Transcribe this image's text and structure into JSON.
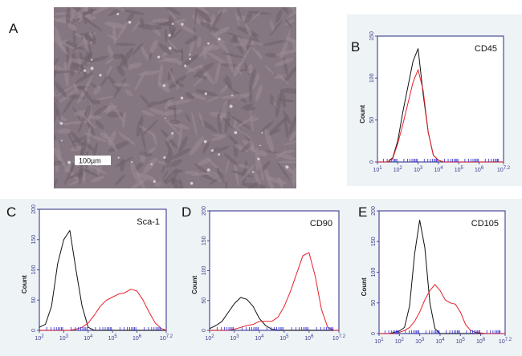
{
  "figure": {
    "panel_a": {
      "letter": "A",
      "scale_bar_label": "100µm"
    }
  },
  "colors": {
    "control_line": "#111111",
    "marker_line": "#e8202a",
    "axis": "#4b4b95",
    "panel_background": "#eef3f6"
  },
  "chart_data": [
    {
      "letter": "B",
      "type": "line",
      "title": "CD45",
      "ylabel": "Count",
      "xscale": "log10",
      "xlim": [
        10.0,
        15850000.0
      ],
      "ylim": [
        0,
        150
      ],
      "yticks": [
        "0",
        "50",
        "100",
        "150"
      ],
      "xticks": [
        "10^1",
        "10^2",
        "10^3",
        "10^4",
        "10^5",
        "10^6",
        "10^7.2"
      ],
      "grid": false,
      "series": [
        {
          "color": "#111111",
          "points": [
            [
              10,
              0
            ],
            [
              31.6,
              0
            ],
            [
              56.2,
              5
            ],
            [
              100,
              25
            ],
            [
              178,
              60
            ],
            [
              316,
              90
            ],
            [
              562,
              120
            ],
            [
              1000,
              135
            ],
            [
              1778,
              80
            ],
            [
              3162,
              35
            ],
            [
              5623,
              8
            ],
            [
              10000,
              2
            ],
            [
              17783,
              0
            ],
            [
              15850000.0,
              0
            ]
          ]
        },
        {
          "color": "#e8202a",
          "points": [
            [
              10,
              0
            ],
            [
              31.6,
              0
            ],
            [
              56.2,
              4
            ],
            [
              100,
              22
            ],
            [
              178,
              45
            ],
            [
              316,
              70
            ],
            [
              562,
              95
            ],
            [
              1000,
              110
            ],
            [
              1778,
              85
            ],
            [
              3162,
              35
            ],
            [
              5623,
              8
            ],
            [
              10000,
              2
            ],
            [
              17783,
              0
            ],
            [
              15850000.0,
              0
            ]
          ]
        }
      ]
    },
    {
      "letter": "C",
      "type": "line",
      "title": "Sca-1",
      "ylabel": "Count",
      "xscale": "log10",
      "xlim": [
        100.0,
        15850000.0
      ],
      "ylim": [
        0,
        200
      ],
      "yticks": [
        "0",
        "50",
        "100",
        "150",
        "200"
      ],
      "xticks": [
        "10^2",
        "10^3",
        "10^4",
        "10^5",
        "10^6",
        "10^7.2"
      ],
      "grid": false,
      "series": [
        {
          "color": "#111111",
          "points": [
            [
              100,
              5
            ],
            [
              178,
              10
            ],
            [
              316,
              40
            ],
            [
              562,
              110
            ],
            [
              1000,
              150
            ],
            [
              1778,
              165
            ],
            [
              3162,
              100
            ],
            [
              5623,
              40
            ],
            [
              10000,
              5
            ],
            [
              17783,
              0
            ],
            [
              15850000.0,
              0
            ]
          ]
        },
        {
          "color": "#e8202a",
          "points": [
            [
              100,
              0
            ],
            [
              1778,
              0
            ],
            [
              3162,
              2
            ],
            [
              5623,
              5
            ],
            [
              10000,
              12
            ],
            [
              17783,
              25
            ],
            [
              31623,
              40
            ],
            [
              56234,
              50
            ],
            [
              100000.0,
              55
            ],
            [
              177828,
              60
            ],
            [
              316228,
              62
            ],
            [
              562341,
              68
            ],
            [
              1000000.0,
              65
            ],
            [
              1778279,
              50
            ],
            [
              3162278,
              30
            ],
            [
              5623413,
              12
            ],
            [
              10000000.0,
              3
            ],
            [
              15850000.0,
              0
            ]
          ]
        }
      ]
    },
    {
      "letter": "D",
      "type": "line",
      "title": "CD90",
      "ylabel": "Count",
      "xscale": "log10",
      "xlim": [
        100.0,
        15850000.0
      ],
      "ylim": [
        0,
        200
      ],
      "yticks": [
        "0",
        "50",
        "100",
        "150",
        "200"
      ],
      "xticks": [
        "10^2",
        "10^3",
        "10^4",
        "10^5",
        "10^6",
        "10^7.2"
      ],
      "grid": false,
      "series": [
        {
          "color": "#111111",
          "points": [
            [
              100,
              3
            ],
            [
              178,
              8
            ],
            [
              316,
              15
            ],
            [
              562,
              30
            ],
            [
              1000,
              45
            ],
            [
              1778,
              55
            ],
            [
              3162,
              52
            ],
            [
              5623,
              40
            ],
            [
              10000,
              20
            ],
            [
              17783,
              8
            ],
            [
              31623,
              2
            ],
            [
              56234,
              0
            ],
            [
              15850000.0,
              0
            ]
          ]
        },
        {
          "color": "#e8202a",
          "points": [
            [
              100,
              0
            ],
            [
              562,
              0
            ],
            [
              1000,
              2
            ],
            [
              1778,
              5
            ],
            [
              3162,
              8
            ],
            [
              5623,
              10
            ],
            [
              10000,
              15
            ],
            [
              17783,
              15
            ],
            [
              31623,
              15
            ],
            [
              56234,
              22
            ],
            [
              100000.0,
              40
            ],
            [
              177828,
              65
            ],
            [
              316228,
              95
            ],
            [
              562341,
              125
            ],
            [
              1000000.0,
              130
            ],
            [
              1778279,
              90
            ],
            [
              3162278,
              35
            ],
            [
              5623413,
              5
            ],
            [
              10000000.0,
              0
            ],
            [
              15850000.0,
              0
            ]
          ]
        }
      ]
    },
    {
      "letter": "E",
      "type": "line",
      "title": "CD105",
      "ylabel": "Count",
      "xscale": "log10",
      "xlim": [
        10.0,
        15850000.0
      ],
      "ylim": [
        0,
        200
      ],
      "yticks": [
        "0",
        "50",
        "100",
        "150",
        "200"
      ],
      "xticks": [
        "10^1",
        "10^2",
        "10^3",
        "10^4",
        "10^5",
        "10^6",
        "10^7.2"
      ],
      "grid": false,
      "series": [
        {
          "color": "#111111",
          "points": [
            [
              10,
              0
            ],
            [
              31.6,
              0
            ],
            [
              56.2,
              2
            ],
            [
              100,
              4
            ],
            [
              178,
              10
            ],
            [
              316,
              45
            ],
            [
              562,
              130
            ],
            [
              1000,
              185
            ],
            [
              1778,
              140
            ],
            [
              3162,
              50
            ],
            [
              5623,
              8
            ],
            [
              10000,
              0
            ],
            [
              15850000.0,
              0
            ]
          ]
        },
        {
          "color": "#e8202a",
          "points": [
            [
              10,
              0
            ],
            [
              56.2,
              0
            ],
            [
              100,
              2
            ],
            [
              178,
              5
            ],
            [
              316,
              10
            ],
            [
              562,
              20
            ],
            [
              1000,
              35
            ],
            [
              1778,
              55
            ],
            [
              3162,
              70
            ],
            [
              5623,
              80
            ],
            [
              10000,
              70
            ],
            [
              17783,
              55
            ],
            [
              31623,
              50
            ],
            [
              56234,
              48
            ],
            [
              100000.0,
              35
            ],
            [
              177828,
              15
            ],
            [
              316228,
              5
            ],
            [
              562341,
              2
            ],
            [
              1000000.0,
              1
            ],
            [
              1778279,
              0
            ],
            [
              15850000.0,
              0
            ]
          ]
        }
      ]
    }
  ]
}
